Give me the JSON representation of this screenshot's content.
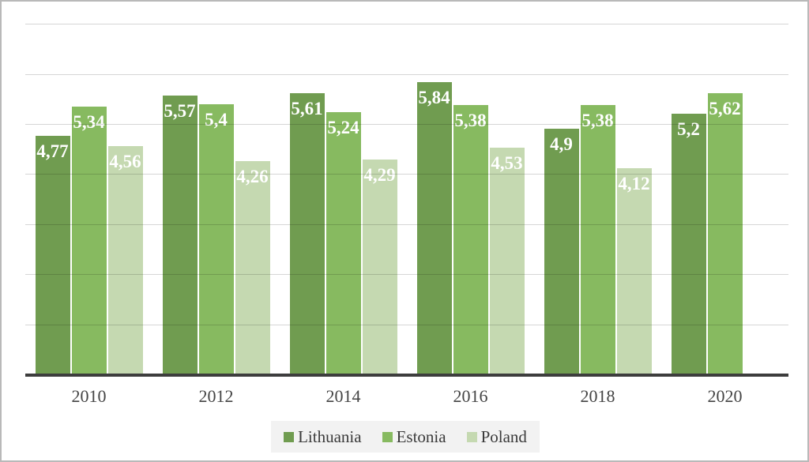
{
  "chart_data": {
    "type": "bar",
    "title": "",
    "xlabel": "",
    "ylabel": "",
    "categories": [
      "2010",
      "2012",
      "2014",
      "2016",
      "2018",
      "2020"
    ],
    "series": [
      {
        "name": "Lithuania",
        "color": "#709c50",
        "values": [
          4.77,
          5.57,
          5.61,
          5.84,
          4.9,
          5.2
        ],
        "labels": [
          "4,77",
          "5,57",
          "5,61",
          "5,84",
          "4,9",
          "5,2"
        ]
      },
      {
        "name": "Estonia",
        "color": "#87ba60",
        "values": [
          5.34,
          5.4,
          5.24,
          5.38,
          5.38,
          5.62
        ],
        "labels": [
          "5,34",
          "5,4",
          "5,24",
          "5,38",
          "5,38",
          "5,62"
        ]
      },
      {
        "name": "Poland",
        "color": "#c5d9b1",
        "values": [
          4.56,
          4.26,
          4.29,
          4.53,
          4.12,
          null
        ],
        "labels": [
          "4,56",
          "4,26",
          "4,29",
          "4,53",
          "4,12",
          null
        ]
      }
    ],
    "ylim": [
      0,
      7
    ],
    "gridline_step": 1,
    "grid": true,
    "legend_position": "bottom",
    "legend": [
      "Lithuania",
      "Estonia",
      "Poland"
    ],
    "label_decimal_separator": ",",
    "colors": {
      "gridline": "#d9d9d9",
      "axis_line": "#3d3d3d",
      "bar_label_text": "#ffffff",
      "axis_tick_text": "#444444",
      "legend_background": "#f2f2f2",
      "frame_border": "#b9b9b9"
    }
  }
}
